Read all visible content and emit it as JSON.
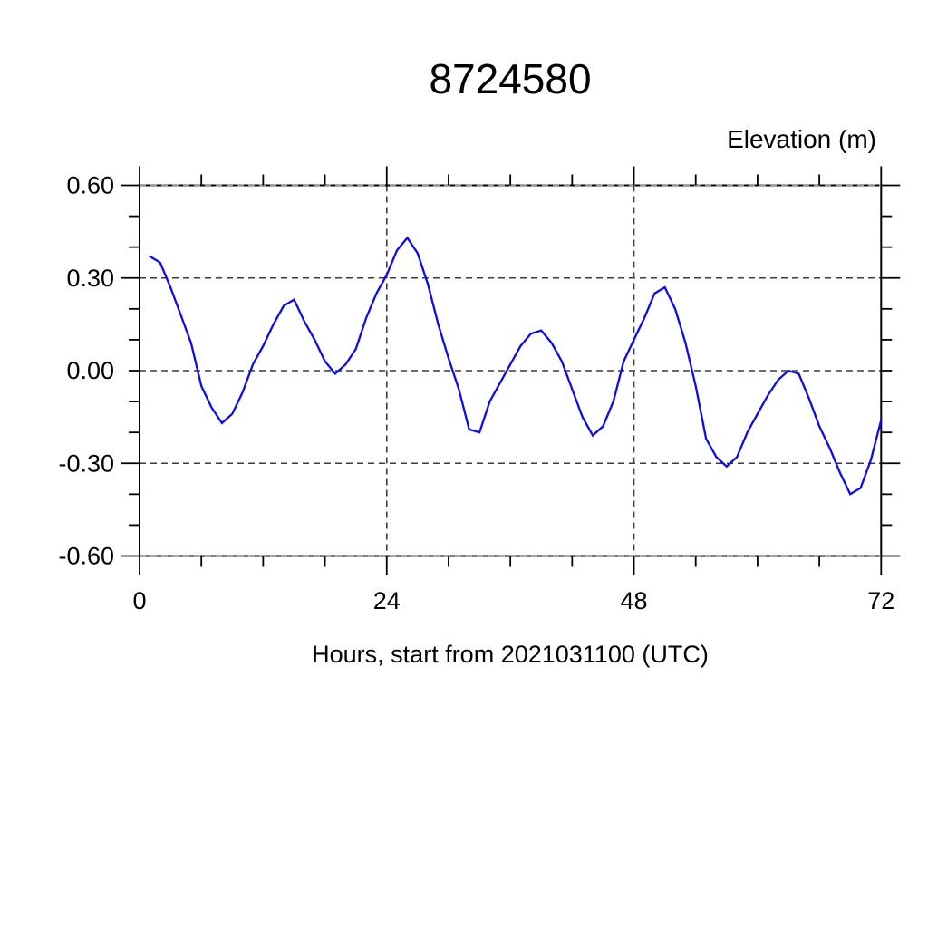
{
  "page": {
    "background": "#ffffff"
  },
  "chart_data": {
    "type": "line",
    "title": "8724580",
    "ylabel_top_right": "Elevation (m)",
    "xlabel": "Hours, start from 2021031100 (UTC)",
    "xlim": [
      0,
      72
    ],
    "ylim": [
      -0.6,
      0.6
    ],
    "xticks_major": [
      0,
      24,
      48,
      72
    ],
    "xtick_labels": [
      "0",
      "24",
      "48",
      "72"
    ],
    "xtick_minor_step": 6,
    "yticks_major": [
      0.6,
      0.3,
      0.0,
      -0.3,
      -0.6
    ],
    "ytick_labels": [
      "0.60",
      "0.30",
      "0.00",
      "-0.30",
      "-0.60"
    ],
    "ytick_minor_step": 0.1,
    "grid": {
      "style": "dashed",
      "x_gridlines": [
        24,
        48
      ],
      "y_gridlines": [
        0.6,
        0.3,
        0.0,
        -0.3,
        -0.6
      ],
      "color": "#3c3c3c",
      "legend_position": "none"
    },
    "frame_color": "#000000",
    "series": [
      {
        "name": "elevation",
        "color": "#0b0bee",
        "x": [
          1,
          2,
          3,
          4,
          5,
          6,
          7,
          8,
          9,
          10,
          11,
          12,
          13,
          14,
          15,
          16,
          17,
          18,
          19,
          20,
          21,
          22,
          23,
          24,
          25,
          26,
          27,
          28,
          29,
          30,
          31,
          32,
          33,
          34,
          35,
          36,
          37,
          38,
          39,
          40,
          41,
          42,
          43,
          44,
          45,
          46,
          47,
          48,
          49,
          50,
          51,
          52,
          53,
          54,
          55,
          56,
          57,
          58,
          59,
          60,
          61,
          62,
          63,
          64,
          65,
          66,
          67,
          68,
          69,
          70,
          71,
          72
        ],
        "values": [
          0.37,
          0.35,
          0.27,
          0.18,
          0.09,
          -0.05,
          -0.12,
          -0.17,
          -0.14,
          -0.07,
          0.02,
          0.08,
          0.15,
          0.21,
          0.23,
          0.16,
          0.1,
          0.03,
          -0.01,
          0.02,
          0.07,
          0.17,
          0.25,
          0.31,
          0.39,
          0.43,
          0.38,
          0.28,
          0.15,
          0.04,
          -0.06,
          -0.19,
          -0.2,
          -0.1,
          -0.04,
          0.02,
          0.08,
          0.12,
          0.13,
          0.09,
          0.03,
          -0.06,
          -0.15,
          -0.21,
          -0.18,
          -0.1,
          0.03,
          0.1,
          0.17,
          0.25,
          0.27,
          0.2,
          0.09,
          -0.05,
          -0.22,
          -0.28,
          -0.31,
          -0.28,
          -0.2,
          -0.14,
          -0.08,
          -0.03,
          0.0,
          -0.01,
          -0.09,
          -0.18,
          -0.25,
          -0.33,
          -0.4,
          -0.38,
          -0.29,
          -0.16
        ]
      }
    ]
  }
}
